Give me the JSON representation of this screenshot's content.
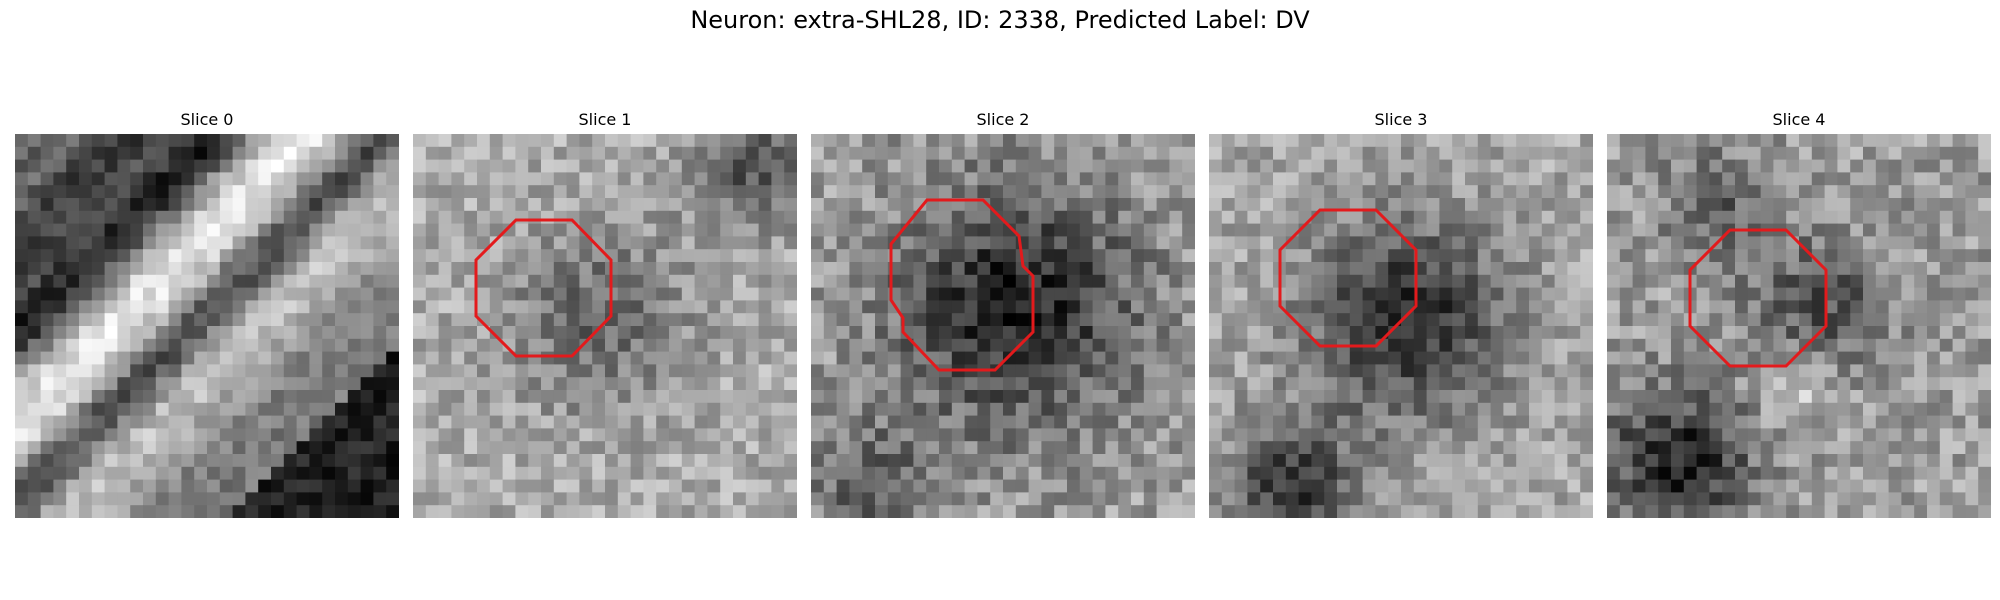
{
  "figure": {
    "title": "Neuron: extra-SHL28, ID: 2338, Predicted Label: DV",
    "outline_color": "#e31a1c"
  },
  "panels": [
    {
      "label": "Slice 0",
      "has_outline": false
    },
    {
      "label": "Slice 1",
      "has_outline": true
    },
    {
      "label": "Slice 2",
      "has_outline": true
    },
    {
      "label": "Slice 3",
      "has_outline": true
    },
    {
      "label": "Slice 4",
      "has_outline": true
    }
  ]
}
